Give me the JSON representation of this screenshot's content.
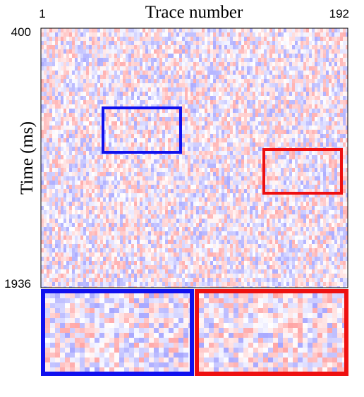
{
  "chart_data": {
    "type": "heatmap",
    "xlabel": "Trace number",
    "ylabel": "Time (ms)",
    "xlim": [
      1,
      192
    ],
    "ylim": [
      400,
      1936
    ],
    "xticks": [
      1,
      192
    ],
    "yticks": [
      400,
      1936
    ]
  }
}
